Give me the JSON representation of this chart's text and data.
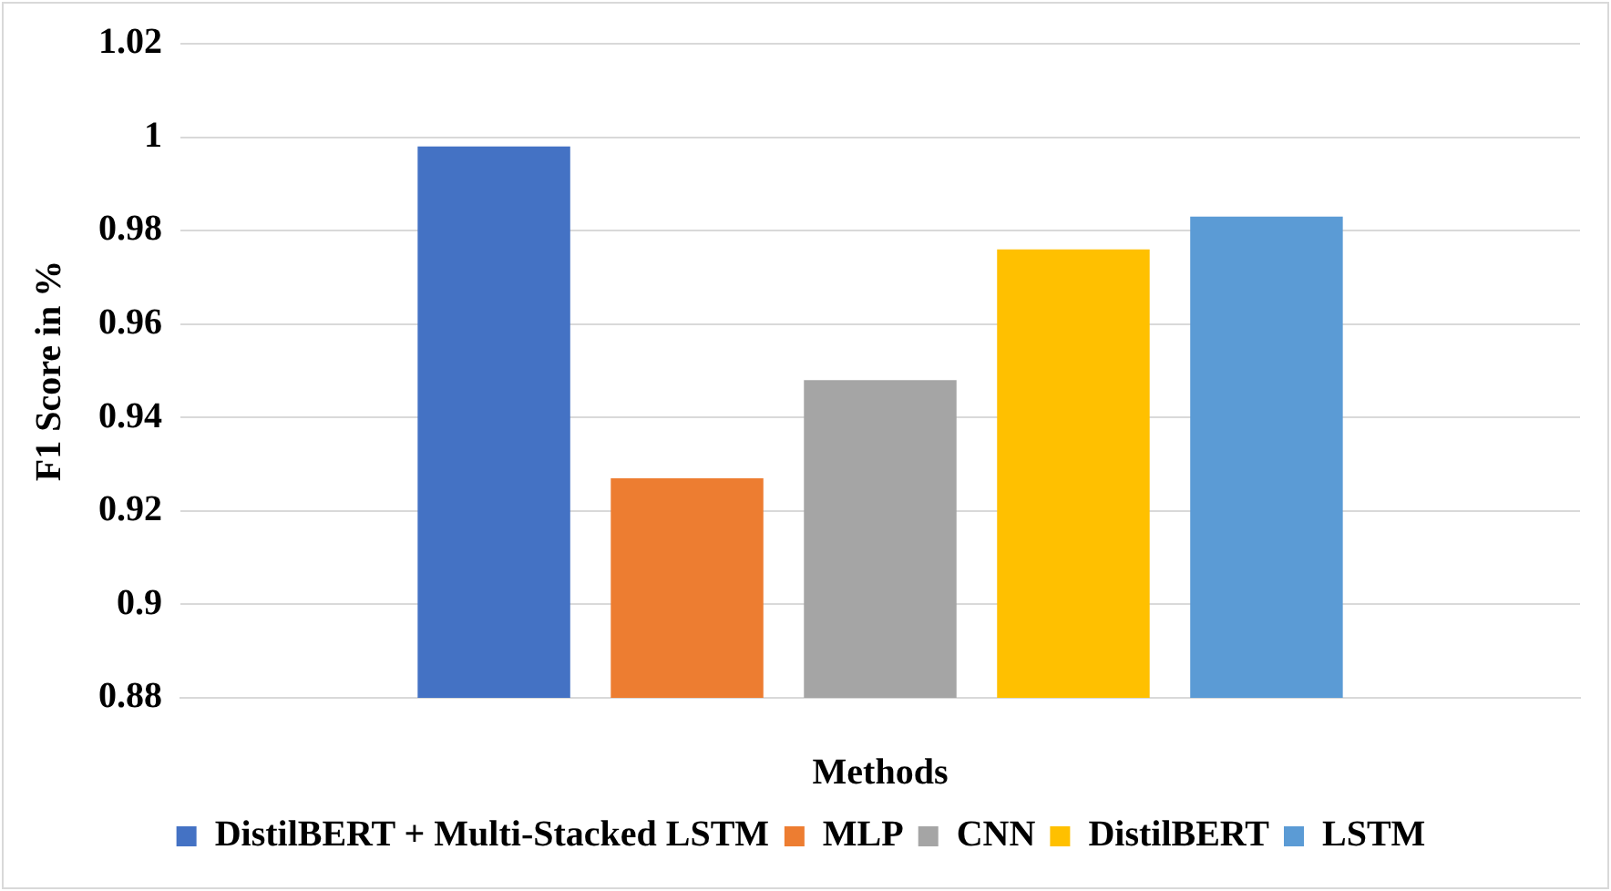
{
  "chart_data": {
    "type": "bar",
    "xlabel": "Methods",
    "ylabel": "F1 Score in %",
    "categories": [
      null
    ],
    "series": [
      {
        "name": "DistilBERT + Multi-Stacked LSTM",
        "color": "#4472c4",
        "values": [
          0.998
        ]
      },
      {
        "name": "MLP",
        "color": "#ed7d31",
        "values": [
          0.927
        ]
      },
      {
        "name": "CNN",
        "color": "#a5a5a5",
        "values": [
          0.948
        ]
      },
      {
        "name": "DistilBERT",
        "color": "#ffc000",
        "values": [
          0.976
        ]
      },
      {
        "name": "LSTM",
        "color": "#5b9bd5",
        "values": [
          0.983
        ]
      }
    ],
    "ylim": [
      0.88,
      1.02
    ],
    "yticks": [
      0.88,
      0.9,
      0.92,
      0.94,
      0.96,
      0.98,
      1,
      1.02
    ],
    "grid": "y",
    "legend": "bottom"
  }
}
